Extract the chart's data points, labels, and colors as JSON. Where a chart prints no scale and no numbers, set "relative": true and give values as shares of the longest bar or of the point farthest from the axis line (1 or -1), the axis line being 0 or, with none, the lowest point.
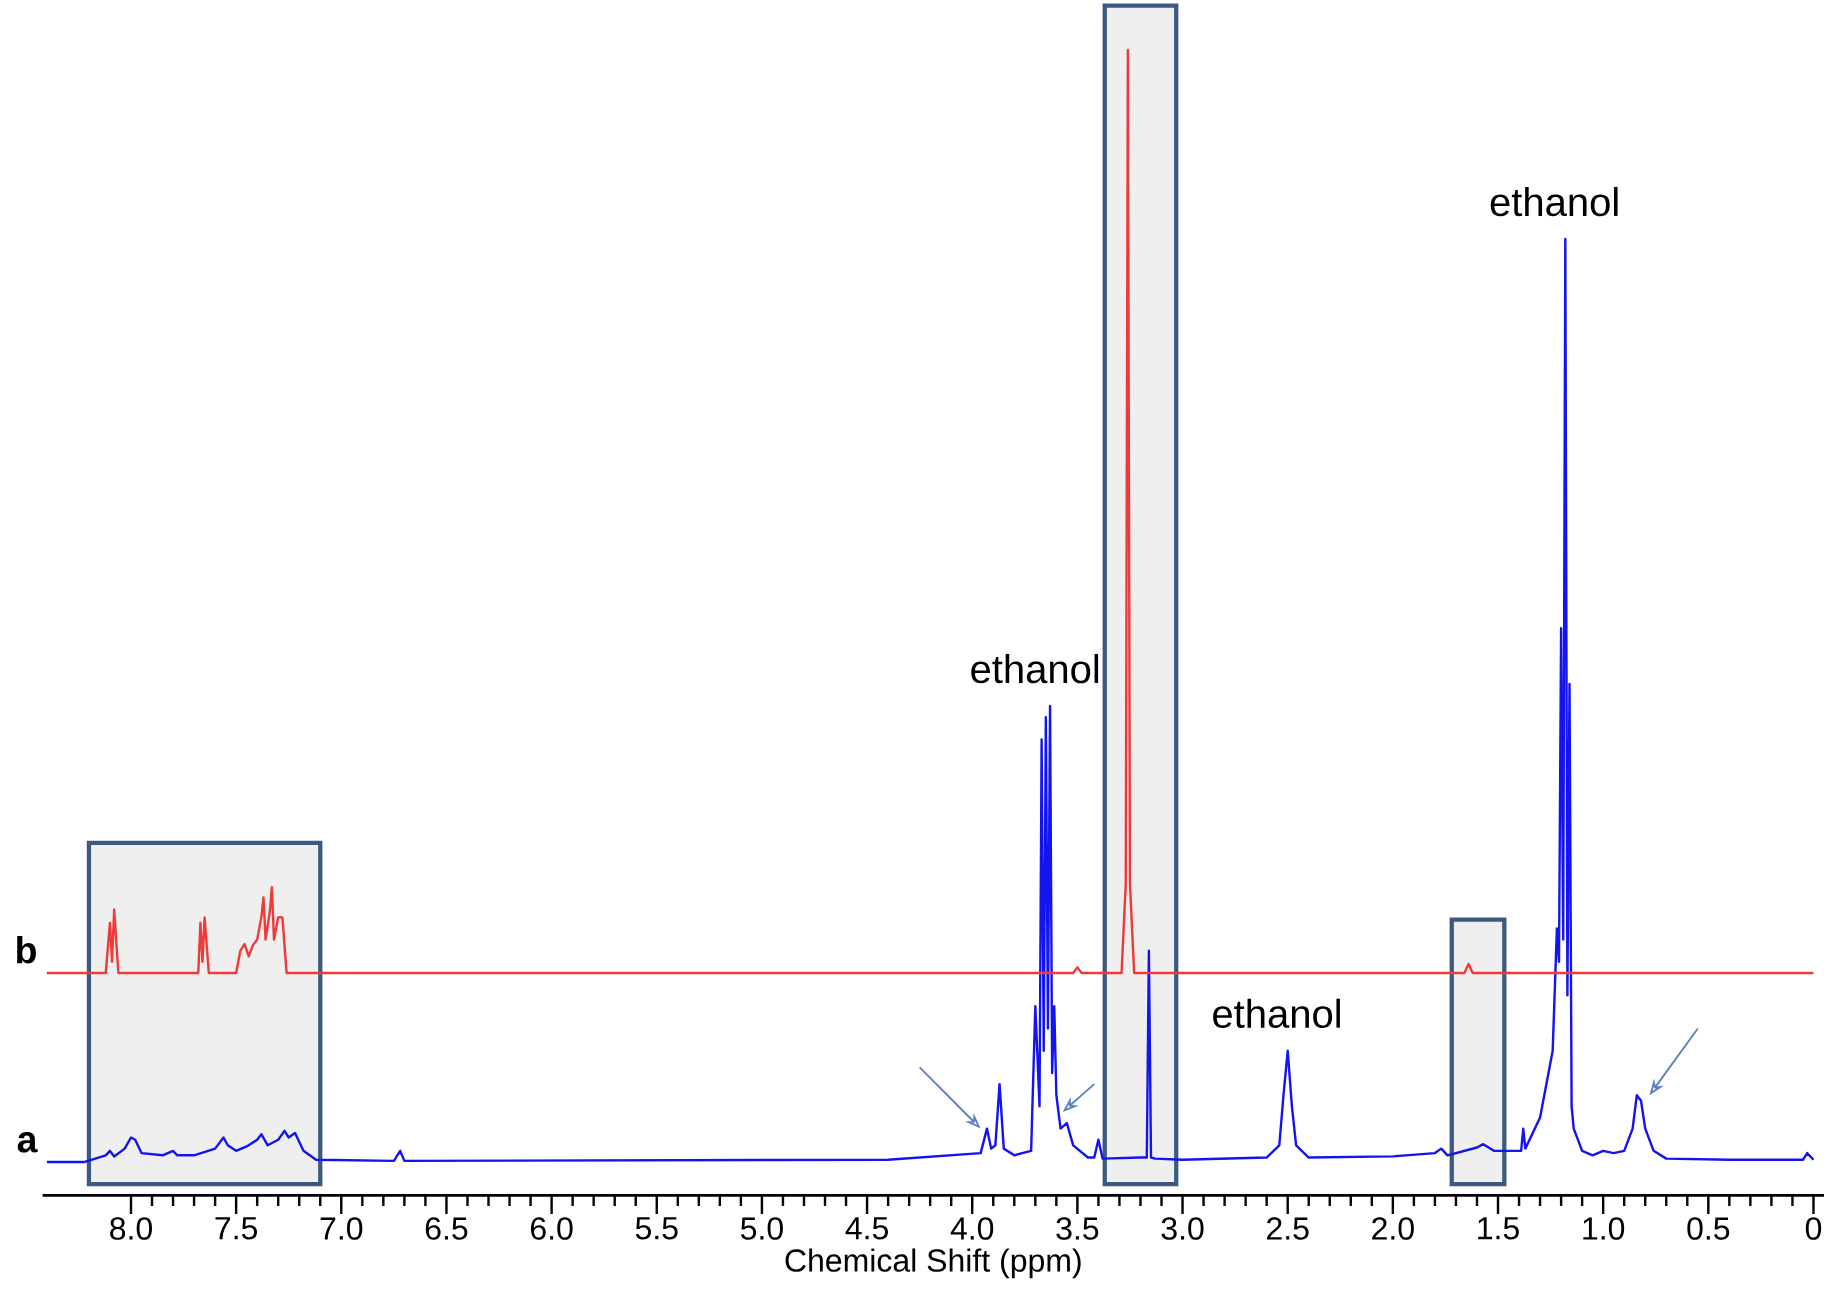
{
  "chart_data": {
    "type": "line",
    "relative": true,
    "xlabel": "Chemical Shift (ppm)",
    "xlim": [
      8.42,
      -0.05
    ],
    "xticks": [
      {
        "value": 8,
        "label": "8.0"
      },
      {
        "value": 7.5,
        "label": "7.5"
      },
      {
        "value": 7,
        "label": "7.0"
      },
      {
        "value": 6.5,
        "label": "6.5"
      },
      {
        "value": 6,
        "label": "6.0"
      },
      {
        "value": 5.5,
        "label": "5.5"
      },
      {
        "value": 5,
        "label": "5.0"
      },
      {
        "value": 4.5,
        "label": "4.5"
      },
      {
        "value": 4,
        "label": "4.0"
      },
      {
        "value": 3.5,
        "label": "3.5"
      },
      {
        "value": 3,
        "label": "3.0"
      },
      {
        "value": 2.5,
        "label": "2.5"
      },
      {
        "value": 2,
        "label": "2.0"
      },
      {
        "value": 1.5,
        "label": "1.5"
      },
      {
        "value": 1,
        "label": "1.0"
      },
      {
        "value": 0.5,
        "label": "0.5"
      },
      {
        "value": 0,
        "label": "0"
      }
    ],
    "tick_labels": "x",
    "bands": [
      {
        "axis": "x",
        "from": 8.2,
        "to": 7.1,
        "color": "#efefef"
      },
      {
        "axis": "x",
        "from": 3.37,
        "to": 3.03,
        "color": "#efefef"
      },
      {
        "axis": "x",
        "from": 1.72,
        "to": 1.47,
        "color": "#efefef"
      }
    ],
    "annotations": [
      {
        "text": "ethanol",
        "x": 3.65,
        "y": 0.41
      },
      {
        "text": "ethanol",
        "x": 2.5,
        "y": 0.1
      },
      {
        "text": "ethanol",
        "x": 1.18,
        "y": 0.83
      }
    ],
    "series": [
      {
        "name": "a",
        "color": "#1414f0",
        "x": [
          8.4,
          8.22,
          8.12,
          8.1,
          8.08,
          8.03,
          8.0,
          7.98,
          7.95,
          7.85,
          7.8,
          7.78,
          7.7,
          7.6,
          7.56,
          7.54,
          7.5,
          7.45,
          7.4,
          7.38,
          7.35,
          7.3,
          7.27,
          7.25,
          7.22,
          7.18,
          7.12,
          6.75,
          6.72,
          6.7,
          4.4,
          3.96,
          3.93,
          3.91,
          3.89,
          3.87,
          3.85,
          3.8,
          3.72,
          3.7,
          3.68,
          3.67,
          3.66,
          3.65,
          3.64,
          3.63,
          3.62,
          3.61,
          3.6,
          3.58,
          3.55,
          3.52,
          3.45,
          3.42,
          3.4,
          3.38,
          3.2,
          3.17,
          3.16,
          3.15,
          3.13,
          3.0,
          2.6,
          2.54,
          2.52,
          2.5,
          2.48,
          2.46,
          2.4,
          2.0,
          1.8,
          1.77,
          1.74,
          1.6,
          1.57,
          1.52,
          1.42,
          1.39,
          1.38,
          1.37,
          1.3,
          1.24,
          1.22,
          1.21,
          1.2,
          1.19,
          1.18,
          1.17,
          1.16,
          1.15,
          1.14,
          1.1,
          1.05,
          1.0,
          0.95,
          0.9,
          0.86,
          0.84,
          0.82,
          0.8,
          0.76,
          0.7,
          0.4,
          0.05,
          0.03,
          0.0
        ],
        "values": [
          0,
          0,
          0.006,
          0.01,
          0.005,
          0.012,
          0.022,
          0.02,
          0.008,
          0.006,
          0.01,
          0.006,
          0.006,
          0.012,
          0.022,
          0.015,
          0.01,
          0.014,
          0.02,
          0.025,
          0.015,
          0.02,
          0.028,
          0.022,
          0.026,
          0.01,
          0.002,
          0.001,
          0.01,
          0.001,
          0.002,
          0.008,
          0.03,
          0.012,
          0.015,
          0.07,
          0.012,
          0.006,
          0.01,
          0.14,
          0.05,
          0.38,
          0.1,
          0.4,
          0.12,
          0.41,
          0.08,
          0.14,
          0.06,
          0.03,
          0.035,
          0.015,
          0.004,
          0.004,
          0.02,
          0.003,
          0.004,
          0.004,
          0.19,
          0.004,
          0.003,
          0.002,
          0.004,
          0.015,
          0.06,
          0.1,
          0.05,
          0.015,
          0.004,
          0.005,
          0.008,
          0.012,
          0.006,
          0.013,
          0.016,
          0.01,
          0.01,
          0.01,
          0.03,
          0.012,
          0.04,
          0.1,
          0.21,
          0.18,
          0.48,
          0.2,
          0.83,
          0.15,
          0.43,
          0.05,
          0.03,
          0.01,
          0.006,
          0.01,
          0.008,
          0.01,
          0.03,
          0.06,
          0.055,
          0.03,
          0.01,
          0.003,
          0.002,
          0.002,
          0.008,
          0.002
        ]
      },
      {
        "name": "b",
        "color": "#f03a3a",
        "x": [
          8.4,
          8.12,
          8.1,
          8.09,
          8.08,
          8.06,
          7.68,
          7.67,
          7.66,
          7.65,
          7.63,
          7.5,
          7.48,
          7.46,
          7.44,
          7.42,
          7.4,
          7.38,
          7.37,
          7.36,
          7.34,
          7.33,
          7.32,
          7.3,
          7.28,
          7.26,
          3.52,
          3.5,
          3.48,
          3.29,
          3.27,
          3.26,
          3.25,
          3.23,
          1.66,
          1.64,
          1.62,
          0.0
        ],
        "values": [
          0.17,
          0.17,
          0.215,
          0.18,
          0.227,
          0.17,
          0.17,
          0.215,
          0.18,
          0.22,
          0.17,
          0.17,
          0.19,
          0.196,
          0.185,
          0.195,
          0.2,
          0.22,
          0.238,
          0.2,
          0.225,
          0.247,
          0.2,
          0.22,
          0.22,
          0.17,
          0.17,
          0.175,
          0.17,
          0.17,
          0.25,
          1.0,
          0.25,
          0.17,
          0.17,
          0.178,
          0.17,
          0.17
        ]
      }
    ]
  }
}
